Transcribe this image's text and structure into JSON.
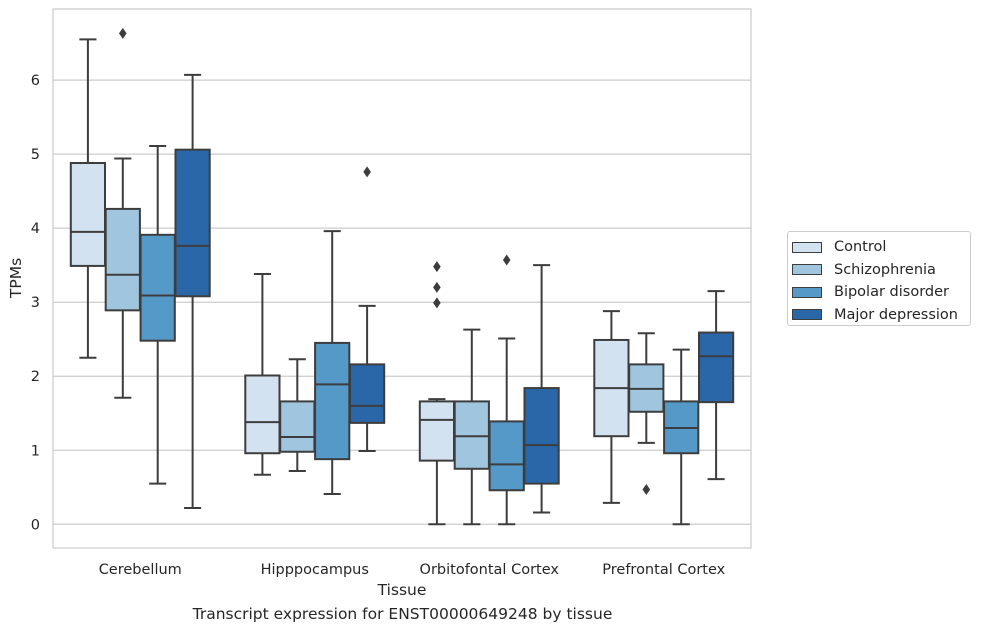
{
  "chart_data": {
    "type": "boxplot",
    "caption": "Transcript expression for ENST00000649248 by tissue",
    "xlabel": "Tissue",
    "ylabel": "TPMs",
    "ylim": [
      -0.32,
      6.96
    ],
    "yticks": [
      0,
      1,
      2,
      3,
      4,
      5,
      6
    ],
    "grid": true,
    "legend_position": "right",
    "categories": [
      "Cerebellum",
      "Hipppocampus",
      "Orbitofontal Cortex",
      "Prefrontal Cortex"
    ],
    "series": [
      {
        "name": "Control",
        "color": "#d3e2f0",
        "boxes": [
          {
            "whislo": 2.25,
            "q1": 3.49,
            "med": 3.95,
            "q3": 4.88,
            "whishi": 6.55,
            "fliers": []
          },
          {
            "whislo": 0.67,
            "q1": 0.96,
            "med": 1.38,
            "q3": 2.01,
            "whishi": 3.38,
            "fliers": []
          },
          {
            "whislo": 0.0,
            "q1": 0.86,
            "med": 1.41,
            "q3": 1.66,
            "whishi": 1.69,
            "fliers": [
              3.48,
              3.2,
              2.99
            ]
          },
          {
            "whislo": 0.29,
            "q1": 1.19,
            "med": 1.84,
            "q3": 2.49,
            "whishi": 2.88,
            "fliers": []
          }
        ]
      },
      {
        "name": "Schizophrenia",
        "color": "#9fc6de",
        "boxes": [
          {
            "whislo": 1.71,
            "q1": 2.89,
            "med": 3.37,
            "q3": 4.26,
            "whishi": 4.94,
            "fliers": [
              6.63
            ]
          },
          {
            "whislo": 0.72,
            "q1": 0.98,
            "med": 1.18,
            "q3": 1.66,
            "whishi": 2.23,
            "fliers": []
          },
          {
            "whislo": 0.0,
            "q1": 0.75,
            "med": 1.19,
            "q3": 1.66,
            "whishi": 2.63,
            "fliers": []
          },
          {
            "whislo": 1.1,
            "q1": 1.52,
            "med": 1.83,
            "q3": 2.16,
            "whishi": 2.58,
            "fliers": [
              0.47
            ]
          }
        ]
      },
      {
        "name": "Bipolar disorder",
        "color": "#5599c9",
        "boxes": [
          {
            "whislo": 0.55,
            "q1": 2.48,
            "med": 3.09,
            "q3": 3.91,
            "whishi": 5.11,
            "fliers": []
          },
          {
            "whislo": 0.41,
            "q1": 0.88,
            "med": 1.89,
            "q3": 2.45,
            "whishi": 3.96,
            "fliers": []
          },
          {
            "whislo": 0.0,
            "q1": 0.46,
            "med": 0.81,
            "q3": 1.39,
            "whishi": 2.51,
            "fliers": [
              3.57
            ]
          },
          {
            "whislo": 0.0,
            "q1": 0.96,
            "med": 1.3,
            "q3": 1.66,
            "whishi": 2.36,
            "fliers": []
          }
        ]
      },
      {
        "name": "Major depression",
        "color": "#2a67a9",
        "boxes": [
          {
            "whislo": 0.22,
            "q1": 3.08,
            "med": 3.76,
            "q3": 5.06,
            "whishi": 6.07,
            "fliers": []
          },
          {
            "whislo": 0.99,
            "q1": 1.37,
            "med": 1.6,
            "q3": 2.16,
            "whishi": 2.95,
            "fliers": [
              4.76
            ]
          },
          {
            "whislo": 0.16,
            "q1": 0.55,
            "med": 1.07,
            "q3": 1.84,
            "whishi": 3.5,
            "fliers": []
          },
          {
            "whislo": 0.61,
            "q1": 1.65,
            "med": 2.27,
            "q3": 2.59,
            "whishi": 3.15,
            "fliers": []
          }
        ]
      }
    ]
  }
}
